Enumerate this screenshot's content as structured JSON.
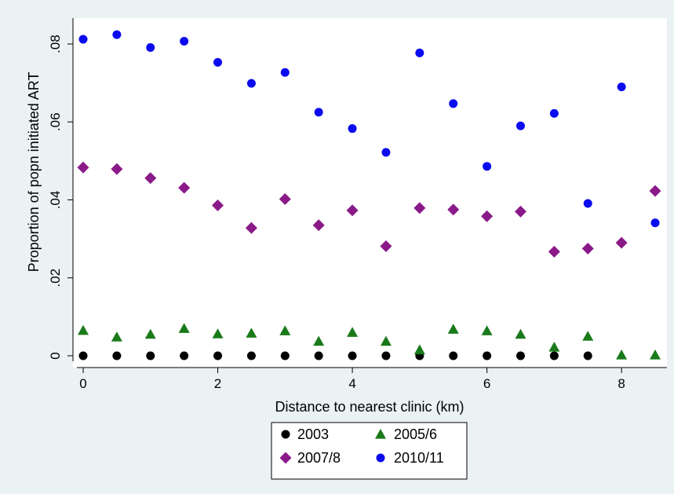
{
  "chart_data": {
    "type": "scatter",
    "title": "",
    "xlabel": "Distance to nearest clinic (km)",
    "ylabel": "Proportion of popn initiated ART",
    "xlim": [
      -0.1,
      8.65
    ],
    "ylim": [
      -0.0015,
      0.0845
    ],
    "x_ticks": [
      0,
      2,
      4,
      6,
      8
    ],
    "x_tick_labels": [
      "0",
      "2",
      "4",
      "6",
      "8"
    ],
    "y_ticks": [
      0,
      0.02,
      0.04,
      0.06,
      0.08
    ],
    "y_tick_labels": [
      "0",
      ".02",
      ".04",
      ".06",
      ".08"
    ],
    "grid": false,
    "legend_position": "bottom",
    "x": [
      0,
      0.5,
      1,
      1.5,
      2,
      2.5,
      3,
      3.5,
      4,
      4.5,
      5,
      5.5,
      6,
      6.5,
      7,
      7.5,
      8,
      8.5
    ],
    "series": [
      {
        "name": "2003",
        "marker": "circle",
        "color": "#000000",
        "values": [
          0,
          0,
          0,
          0,
          0,
          0,
          0,
          0,
          0,
          0,
          0,
          0,
          0,
          0,
          0,
          0,
          null,
          null
        ]
      },
      {
        "name": "2005/6",
        "marker": "triangle",
        "color": "#1a7a1a",
        "values": [
          0.0065,
          0.0048,
          0.0055,
          0.007,
          0.0056,
          0.0058,
          0.0064,
          0.0037,
          0.006,
          0.0037,
          0.0015,
          0.0068,
          0.0064,
          0.0055,
          0.0022,
          0.005,
          0.0002,
          0.0002
        ]
      },
      {
        "name": "2007/8",
        "marker": "diamond",
        "color": "#8b1a89",
        "values": [
          0.0483,
          0.0479,
          0.0456,
          0.0431,
          0.0386,
          0.0328,
          0.0402,
          0.0335,
          0.0373,
          0.0281,
          0.0379,
          0.0375,
          0.0358,
          0.037,
          0.0267,
          0.0275,
          0.029,
          0.0423
        ]
      },
      {
        "name": "2010/11",
        "marker": "circle",
        "color": "#0a0af0",
        "values": [
          0.0812,
          0.0824,
          0.0791,
          0.0807,
          0.0753,
          0.0699,
          0.0727,
          0.0625,
          0.0583,
          0.0522,
          0.0777,
          0.0647,
          0.0486,
          0.059,
          0.0622,
          0.0391,
          0.069,
          0.0341
        ]
      }
    ]
  },
  "colors": {
    "outer_background": "#eaf2f3",
    "plot_background": "#ffffff"
  }
}
